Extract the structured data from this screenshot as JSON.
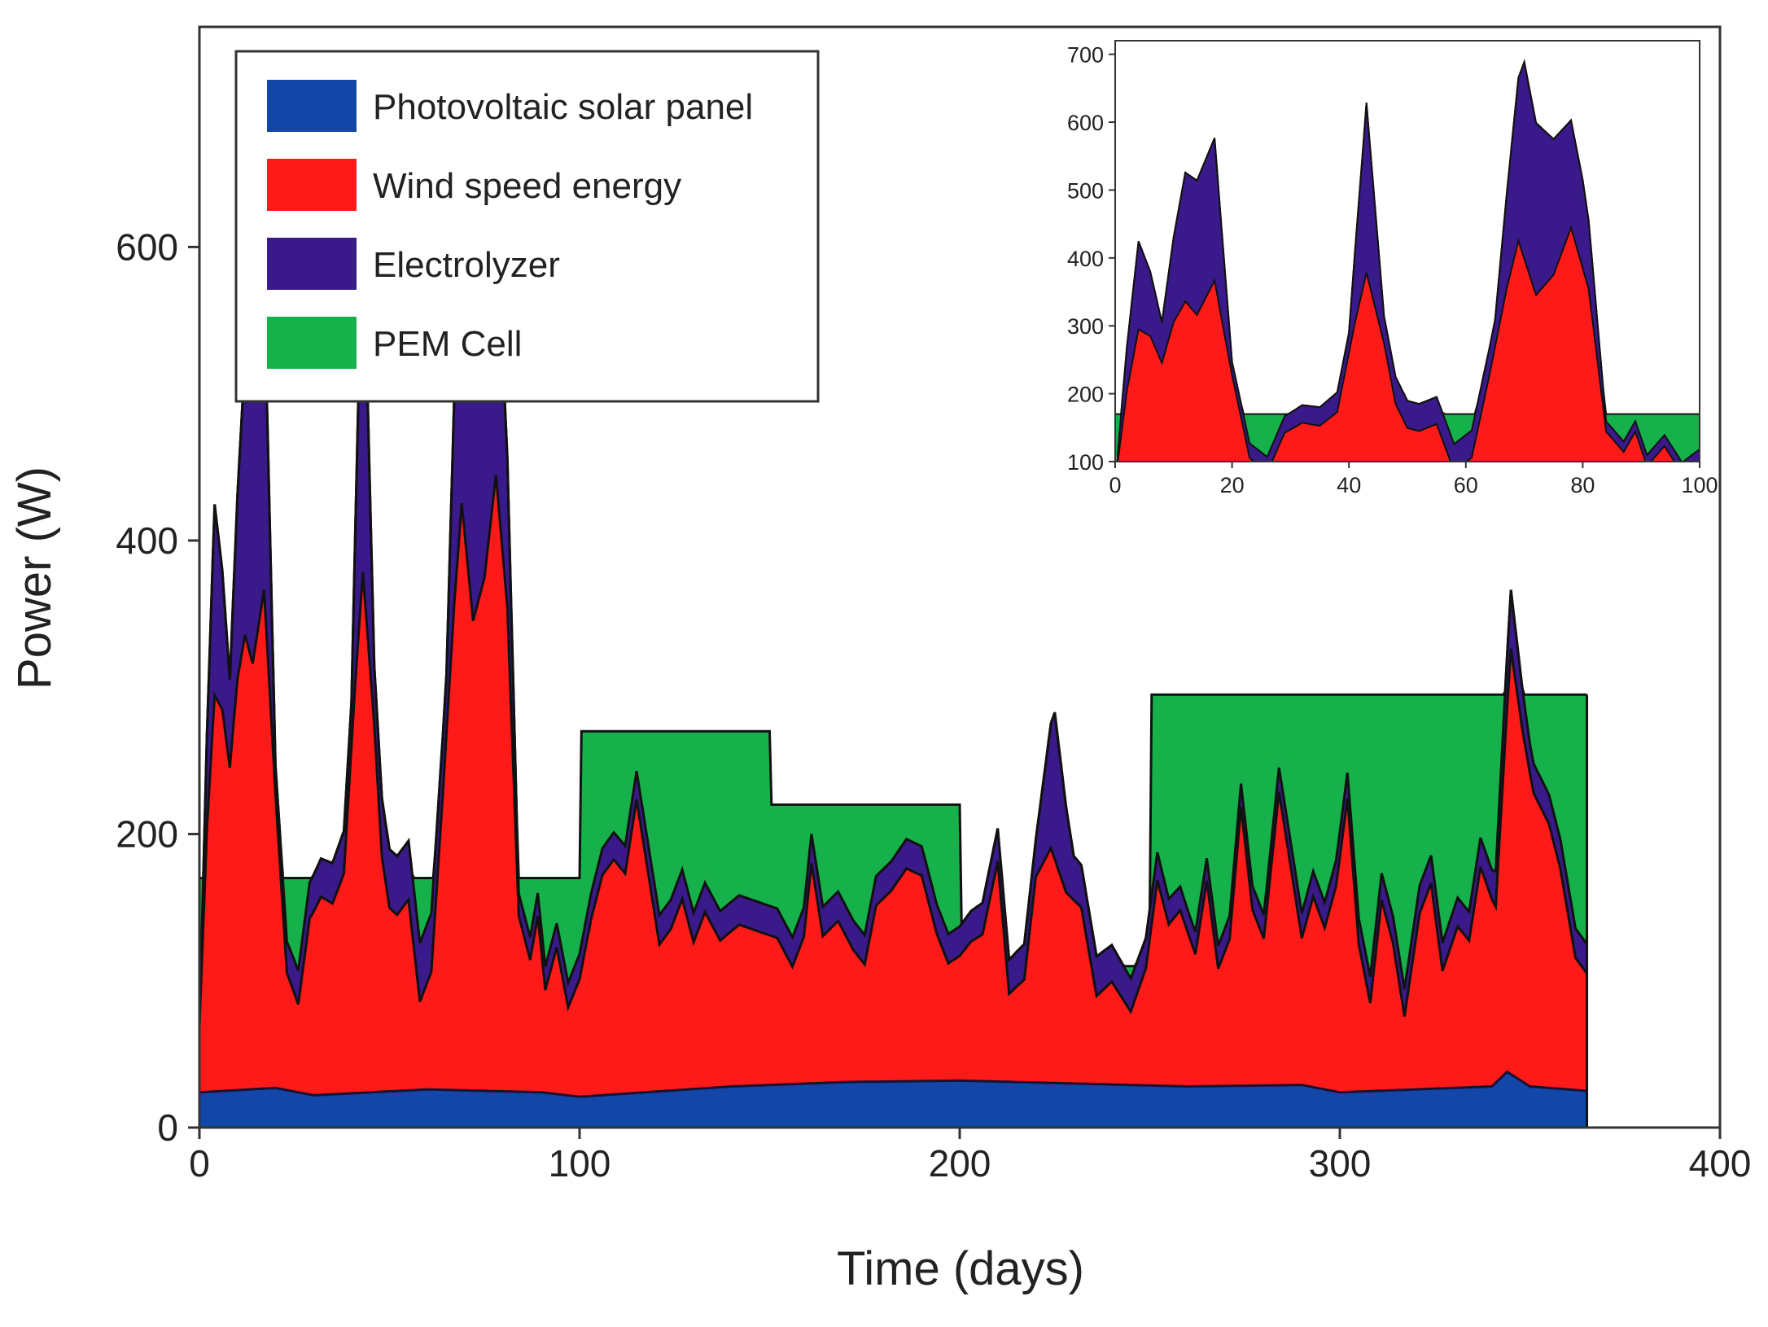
{
  "chart_data": [
    {
      "type": "area",
      "stacked": true,
      "title": "",
      "xlabel": "Time (days)",
      "ylabel": "Power (W)",
      "xlim": [
        0,
        400
      ],
      "ylim": [
        0,
        750
      ],
      "xticks": [
        0,
        100,
        200,
        300,
        400
      ],
      "yticks": [
        0,
        200,
        400,
        600
      ],
      "grid": false,
      "legend_position": "top-left",
      "series": [
        {
          "name": "Photovoltaic solar panel",
          "color": "#1246a8",
          "points": [
            [
              0,
              24
            ],
            [
              20,
              27
            ],
            [
              30,
              22
            ],
            [
              60,
              26
            ],
            [
              90,
              24
            ],
            [
              100,
              21
            ],
            [
              140,
              28
            ],
            [
              170,
              31
            ],
            [
              200,
              32
            ],
            [
              230,
              30
            ],
            [
              260,
              28
            ],
            [
              290,
              29
            ],
            [
              300,
              24
            ],
            [
              320,
              26
            ],
            [
              340,
              28
            ],
            [
              344,
              38
            ],
            [
              350,
              28
            ],
            [
              365,
              25
            ]
          ]
        },
        {
          "name": "Wind speed energy",
          "color": "#ff1a1a",
          "points": [
            [
              0,
              45
            ],
            [
              2,
              180
            ],
            [
              4,
              270
            ],
            [
              6,
              260
            ],
            [
              8,
              220
            ],
            [
              10,
              280
            ],
            [
              12,
              310
            ],
            [
              14,
              290
            ],
            [
              17,
              340
            ],
            [
              20,
              200
            ],
            [
              23,
              80
            ],
            [
              26,
              60
            ],
            [
              29,
              120
            ],
            [
              32,
              135
            ],
            [
              35,
              130
            ],
            [
              38,
              150
            ],
            [
              41,
              280
            ],
            [
              43,
              355
            ],
            [
              46,
              250
            ],
            [
              48,
              160
            ],
            [
              50,
              125
            ],
            [
              52,
              120
            ],
            [
              55,
              130
            ],
            [
              58,
              60
            ],
            [
              61,
              80
            ],
            [
              64,
              200
            ],
            [
              67,
              330
            ],
            [
              69,
              400
            ],
            [
              72,
              320
            ],
            [
              75,
              350
            ],
            [
              78,
              420
            ],
            [
              81,
              330
            ],
            [
              84,
              120
            ],
            [
              87,
              90
            ],
            [
              89,
              120
            ],
            [
              91,
              70
            ],
            [
              94,
              100
            ],
            [
              97,
              60
            ],
            [
              100,
              80
            ],
            [
              103,
              120
            ],
            [
              106,
              150
            ],
            [
              109,
              160
            ],
            [
              112,
              150
            ],
            [
              115,
              200
            ],
            [
              118,
              150
            ],
            [
              121,
              100
            ],
            [
              124,
              110
            ],
            [
              127,
              130
            ],
            [
              130,
              100
            ],
            [
              133,
              120
            ],
            [
              137,
              100
            ],
            [
              142,
              110
            ],
            [
              147,
              105
            ],
            [
              152,
              100
            ],
            [
              156,
              80
            ],
            [
              159,
              100
            ],
            [
              161,
              150
            ],
            [
              164,
              100
            ],
            [
              168,
              110
            ],
            [
              172,
              90
            ],
            [
              175,
              80
            ],
            [
              178,
              120
            ],
            [
              182,
              130
            ],
            [
              186,
              145
            ],
            [
              190,
              140
            ],
            [
              194,
              100
            ],
            [
              197,
              80
            ],
            [
              200,
              85
            ],
            [
              203,
              95
            ],
            [
              206,
              100
            ],
            [
              210,
              150
            ],
            [
              213,
              60
            ],
            [
              217,
              70
            ],
            [
              220,
              140
            ],
            [
              224,
              160
            ],
            [
              228,
              130
            ],
            [
              232,
              120
            ],
            [
              236,
              60
            ],
            [
              240,
              70
            ],
            [
              245,
              50
            ],
            [
              249,
              80
            ],
            [
              252,
              140
            ],
            [
              255,
              110
            ],
            [
              258,
              120
            ],
            [
              262,
              90
            ],
            [
              265,
              140
            ],
            [
              268,
              80
            ],
            [
              271,
              100
            ],
            [
              274,
              190
            ],
            [
              277,
              120
            ],
            [
              280,
              100
            ],
            [
              284,
              200
            ],
            [
              287,
              150
            ],
            [
              290,
              100
            ],
            [
              293,
              130
            ],
            [
              296,
              110
            ],
            [
              299,
              140
            ],
            [
              302,
              200
            ],
            [
              305,
              100
            ],
            [
              308,
              60
            ],
            [
              311,
              130
            ],
            [
              314,
              100
            ],
            [
              317,
              50
            ],
            [
              321,
              120
            ],
            [
              324,
              140
            ],
            [
              327,
              80
            ],
            [
              331,
              110
            ],
            [
              334,
              100
            ],
            [
              337,
              150
            ],
            [
              341,
              120
            ],
            [
              345,
              290
            ],
            [
              348,
              240
            ],
            [
              351,
              200
            ],
            [
              355,
              180
            ],
            [
              358,
              150
            ],
            [
              362,
              90
            ],
            [
              365,
              80
            ]
          ]
        },
        {
          "name": "Electrolyzer",
          "color": "#3a1a8a",
          "points": [
            [
              0,
              0
            ],
            [
              4,
              130
            ],
            [
              8,
              60
            ],
            [
              12,
              190
            ],
            [
              17,
              210
            ],
            [
              20,
              20
            ],
            [
              40,
              30
            ],
            [
              43,
              250
            ],
            [
              46,
              40
            ],
            [
              65,
              40
            ],
            [
              70,
              290
            ],
            [
              75,
              200
            ],
            [
              80,
              130
            ],
            [
              84,
              15
            ],
            [
              120,
              20
            ],
            [
              200,
              20
            ],
            [
              220,
              25
            ],
            [
              225,
              100
            ],
            [
              230,
              30
            ],
            [
              260,
              15
            ],
            [
              340,
              20
            ],
            [
              345,
              40
            ],
            [
              350,
              20
            ],
            [
              365,
              20
            ]
          ]
        },
        {
          "name": "PEM Cell",
          "color": "#16b14a",
          "segments": [
            {
              "from": 0,
              "to": 22,
              "level": 170
            },
            {
              "from": 22,
              "to": 100,
              "level": 170
            },
            {
              "from": 100,
              "to": 150,
              "level": 270
            },
            {
              "from": 150,
              "to": 200,
              "level": 220
            },
            {
              "from": 200,
              "to": 250,
              "level": 110
            },
            {
              "from": 250,
              "to": 365,
              "level": 295
            }
          ]
        }
      ]
    },
    {
      "type": "area",
      "stacked": true,
      "inset": true,
      "title": "",
      "xlim": [
        0,
        100
      ],
      "ylim": [
        100,
        720
      ],
      "xticks": [
        0,
        20,
        40,
        60,
        80,
        100
      ],
      "yticks": [
        100,
        200,
        300,
        400,
        500,
        600,
        700
      ],
      "series_ref": "main",
      "pem_level": 170
    }
  ],
  "legend": {
    "items": [
      {
        "label": "Photovoltaic solar panel",
        "color": "#1246a8"
      },
      {
        "label": "Wind speed energy",
        "color": "#ff1a1a"
      },
      {
        "label": "Electrolyzer",
        "color": "#3a1a8a"
      },
      {
        "label": "PEM Cell",
        "color": "#16b14a"
      }
    ]
  }
}
